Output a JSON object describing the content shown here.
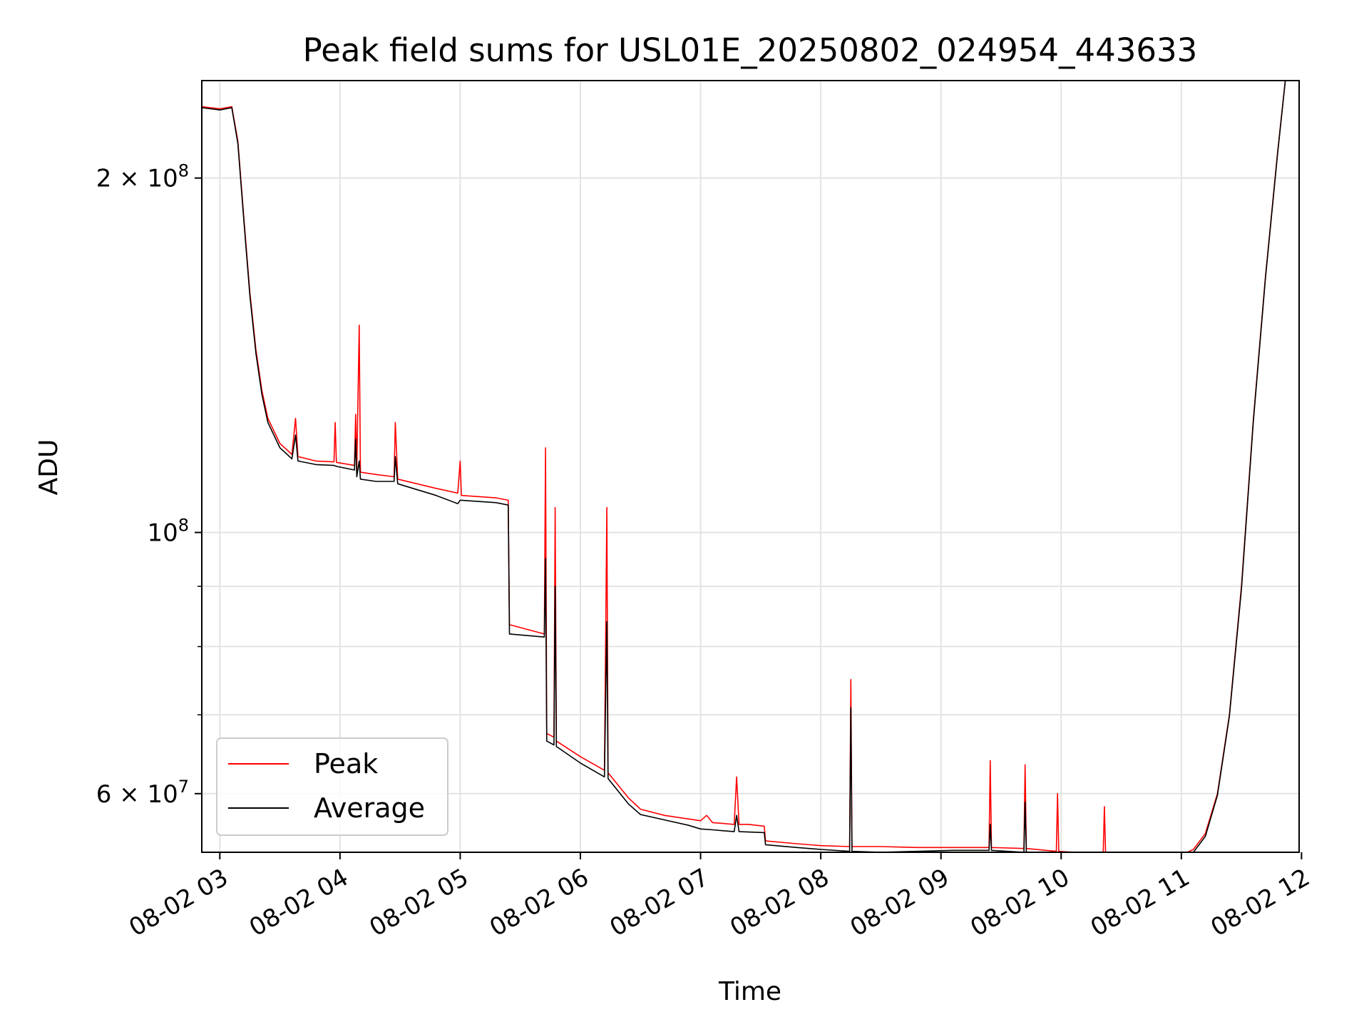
{
  "chart_data": {
    "type": "line",
    "title": "Peak field sums for USL01E_20250802_024954_443633",
    "xlabel": "Time",
    "ylabel": "ADU",
    "yscale": "log",
    "grid": true,
    "legend_position": "lower-left",
    "xlim": [
      2.85,
      11.98
    ],
    "ylim": [
      53500000,
      242000000
    ],
    "x_ticks": [
      {
        "value": 3,
        "label": "08-02 03"
      },
      {
        "value": 4,
        "label": "08-02 04"
      },
      {
        "value": 5,
        "label": "08-02 05"
      },
      {
        "value": 6,
        "label": "08-02 06"
      },
      {
        "value": 7,
        "label": "08-02 07"
      },
      {
        "value": 8,
        "label": "08-02 08"
      },
      {
        "value": 9,
        "label": "08-02 09"
      },
      {
        "value": 10,
        "label": "08-02 10"
      },
      {
        "value": 11,
        "label": "08-02 11"
      },
      {
        "value": 12,
        "label": "08-02 12"
      }
    ],
    "y_major_ticks": [
      {
        "value": 200000000,
        "label_base": "2 × 10",
        "label_exp": "8"
      },
      {
        "value": 100000000,
        "label_base": "10",
        "label_exp": "8"
      },
      {
        "value": 60000000,
        "label_base": "6 × 10",
        "label_exp": "7"
      }
    ],
    "y_minor_ticks": [
      70000000,
      80000000,
      90000000
    ],
    "series": [
      {
        "name": "Peak",
        "color": "#ff0000",
        "points": [
          [
            2.85,
            230000000
          ],
          [
            3.0,
            229000000
          ],
          [
            3.1,
            230000000
          ],
          [
            3.15,
            215000000
          ],
          [
            3.2,
            185000000
          ],
          [
            3.25,
            160000000
          ],
          [
            3.3,
            143000000
          ],
          [
            3.35,
            132000000
          ],
          [
            3.4,
            125000000
          ],
          [
            3.5,
            119000000
          ],
          [
            3.6,
            116500000
          ],
          [
            3.63,
            125000000
          ],
          [
            3.65,
            116000000
          ],
          [
            3.8,
            115000000
          ],
          [
            3.95,
            114800000
          ],
          [
            3.96,
            124000000
          ],
          [
            3.97,
            114700000
          ],
          [
            4.12,
            114000000
          ],
          [
            4.13,
            126000000
          ],
          [
            4.14,
            113000000
          ],
          [
            4.16,
            150000000
          ],
          [
            4.17,
            112500000
          ],
          [
            4.3,
            112000000
          ],
          [
            4.45,
            111500000
          ],
          [
            4.46,
            124000000
          ],
          [
            4.48,
            111000000
          ],
          [
            4.8,
            109000000
          ],
          [
            4.98,
            108000000
          ],
          [
            5.0,
            115000000
          ],
          [
            5.01,
            107500000
          ],
          [
            5.3,
            107000000
          ],
          [
            5.4,
            106500000
          ],
          [
            5.41,
            83500000
          ],
          [
            5.7,
            82000000
          ],
          [
            5.71,
            118000000
          ],
          [
            5.72,
            67500000
          ],
          [
            5.78,
            67000000
          ],
          [
            5.79,
            105000000
          ],
          [
            5.8,
            66500000
          ],
          [
            6.0,
            64500000
          ],
          [
            6.2,
            62800000
          ],
          [
            6.22,
            105000000
          ],
          [
            6.23,
            62500000
          ],
          [
            6.4,
            59500000
          ],
          [
            6.5,
            58200000
          ],
          [
            6.7,
            57500000
          ],
          [
            6.9,
            57100000
          ],
          [
            7.0,
            56900000
          ],
          [
            7.05,
            57500000
          ],
          [
            7.1,
            56700000
          ],
          [
            7.28,
            56500000
          ],
          [
            7.3,
            62000000
          ],
          [
            7.32,
            56500000
          ],
          [
            7.4,
            56500000
          ],
          [
            7.53,
            56300000
          ],
          [
            7.54,
            54700000
          ],
          [
            7.8,
            54400000
          ],
          [
            8.0,
            54200000
          ],
          [
            8.24,
            54100000
          ],
          [
            8.25,
            75000000
          ],
          [
            8.26,
            54100000
          ],
          [
            8.5,
            54100000
          ],
          [
            8.8,
            54000000
          ],
          [
            9.1,
            54000000
          ],
          [
            9.4,
            54000000
          ],
          [
            9.41,
            64000000
          ],
          [
            9.42,
            54000000
          ],
          [
            9.69,
            53900000
          ],
          [
            9.7,
            63500000
          ],
          [
            9.71,
            53900000
          ],
          [
            9.96,
            53600000
          ],
          [
            9.97,
            60000000
          ],
          [
            9.98,
            53600000
          ],
          [
            10.35,
            53300000
          ],
          [
            10.36,
            58500000
          ],
          [
            10.37,
            53300000
          ],
          [
            10.7,
            53000000
          ],
          [
            11.0,
            53200000
          ],
          [
            11.1,
            53800000
          ],
          [
            11.2,
            55500000
          ],
          [
            11.3,
            60000000
          ],
          [
            11.4,
            70000000
          ],
          [
            11.5,
            90000000
          ],
          [
            11.6,
            125000000
          ],
          [
            11.7,
            165000000
          ],
          [
            11.8,
            210000000
          ],
          [
            11.88,
            250000000
          ]
        ]
      },
      {
        "name": "Average",
        "color": "#000000",
        "points": [
          [
            2.85,
            229500000
          ],
          [
            3.0,
            228500000
          ],
          [
            3.1,
            229500000
          ],
          [
            3.15,
            214000000
          ],
          [
            3.2,
            184000000
          ],
          [
            3.25,
            159000000
          ],
          [
            3.3,
            142000000
          ],
          [
            3.35,
            131000000
          ],
          [
            3.4,
            124000000
          ],
          [
            3.5,
            118000000
          ],
          [
            3.6,
            115500000
          ],
          [
            3.63,
            121000000
          ],
          [
            3.65,
            115000000
          ],
          [
            3.8,
            114200000
          ],
          [
            3.95,
            114000000
          ],
          [
            3.97,
            113800000
          ],
          [
            4.12,
            113000000
          ],
          [
            4.13,
            120000000
          ],
          [
            4.14,
            111500000
          ],
          [
            4.16,
            115000000
          ],
          [
            4.17,
            111000000
          ],
          [
            4.3,
            110500000
          ],
          [
            4.45,
            110500000
          ],
          [
            4.46,
            116000000
          ],
          [
            4.48,
            110000000
          ],
          [
            4.8,
            107500000
          ],
          [
            4.98,
            105800000
          ],
          [
            5.0,
            106500000
          ],
          [
            5.01,
            106500000
          ],
          [
            5.3,
            106000000
          ],
          [
            5.4,
            105500000
          ],
          [
            5.41,
            82000000
          ],
          [
            5.7,
            81500000
          ],
          [
            5.71,
            95000000
          ],
          [
            5.72,
            66500000
          ],
          [
            5.78,
            66000000
          ],
          [
            5.79,
            90000000
          ],
          [
            5.8,
            65800000
          ],
          [
            6.0,
            63700000
          ],
          [
            6.2,
            62000000
          ],
          [
            6.22,
            84000000
          ],
          [
            6.23,
            61800000
          ],
          [
            6.4,
            58800000
          ],
          [
            6.5,
            57600000
          ],
          [
            6.7,
            57000000
          ],
          [
            6.9,
            56400000
          ],
          [
            7.0,
            56000000
          ],
          [
            7.1,
            55900000
          ],
          [
            7.28,
            55700000
          ],
          [
            7.3,
            57500000
          ],
          [
            7.32,
            55700000
          ],
          [
            7.53,
            55600000
          ],
          [
            7.54,
            54300000
          ],
          [
            7.8,
            54000000
          ],
          [
            8.0,
            53800000
          ],
          [
            8.24,
            53600000
          ],
          [
            8.25,
            71000000
          ],
          [
            8.26,
            53600000
          ],
          [
            8.5,
            53500000
          ],
          [
            8.8,
            53600000
          ],
          [
            9.1,
            53700000
          ],
          [
            9.4,
            53700000
          ],
          [
            9.41,
            56500000
          ],
          [
            9.42,
            53700000
          ],
          [
            9.69,
            53500000
          ],
          [
            9.7,
            59000000
          ],
          [
            9.71,
            53500000
          ],
          [
            9.96,
            53100000
          ],
          [
            10.35,
            52800000
          ],
          [
            10.7,
            52500000
          ],
          [
            11.0,
            52800000
          ],
          [
            11.1,
            53500000
          ],
          [
            11.2,
            55200000
          ],
          [
            11.3,
            59800000
          ],
          [
            11.4,
            69800000
          ],
          [
            11.5,
            89500000
          ],
          [
            11.6,
            124500000
          ],
          [
            11.7,
            164500000
          ],
          [
            11.8,
            209500000
          ],
          [
            11.88,
            250000000
          ]
        ]
      }
    ]
  }
}
